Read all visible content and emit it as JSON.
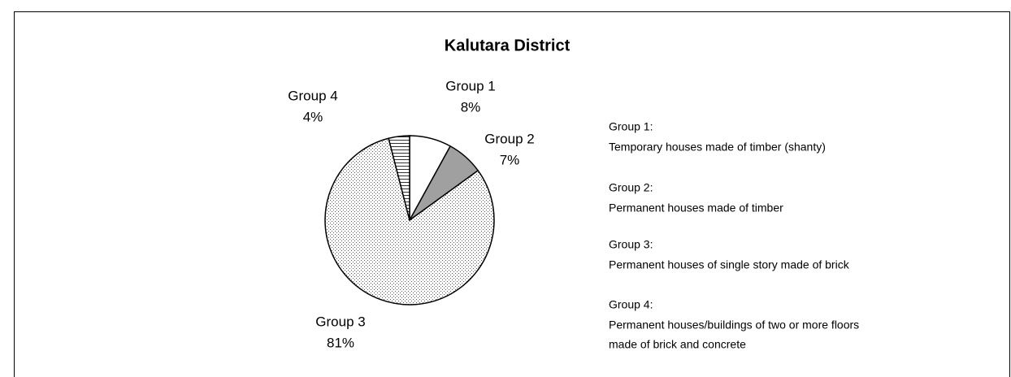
{
  "chart_data": {
    "type": "pie",
    "title": "Kalutara District",
    "categories": [
      "Group 1",
      "Group 2",
      "Group 3",
      "Group 4"
    ],
    "values": [
      8,
      7,
      81,
      4
    ],
    "value_labels": [
      "8%",
      "7%",
      "81%",
      "4%"
    ],
    "fills": [
      "white",
      "gray",
      "dots",
      "hlines"
    ],
    "descriptions": [
      {
        "heading": "Group 1:",
        "lines": [
          "Temporary houses made of timber (shanty)"
        ]
      },
      {
        "heading": "Group 2:",
        "lines": [
          "Permanent houses made of timber"
        ]
      },
      {
        "heading": "Group 3:",
        "lines": [
          "Permanent houses of single story made of brick"
        ]
      },
      {
        "heading": "Group 4:",
        "lines": [
          "Permanent houses/buildings of two or more floors",
          "made of brick and concrete"
        ]
      }
    ]
  }
}
